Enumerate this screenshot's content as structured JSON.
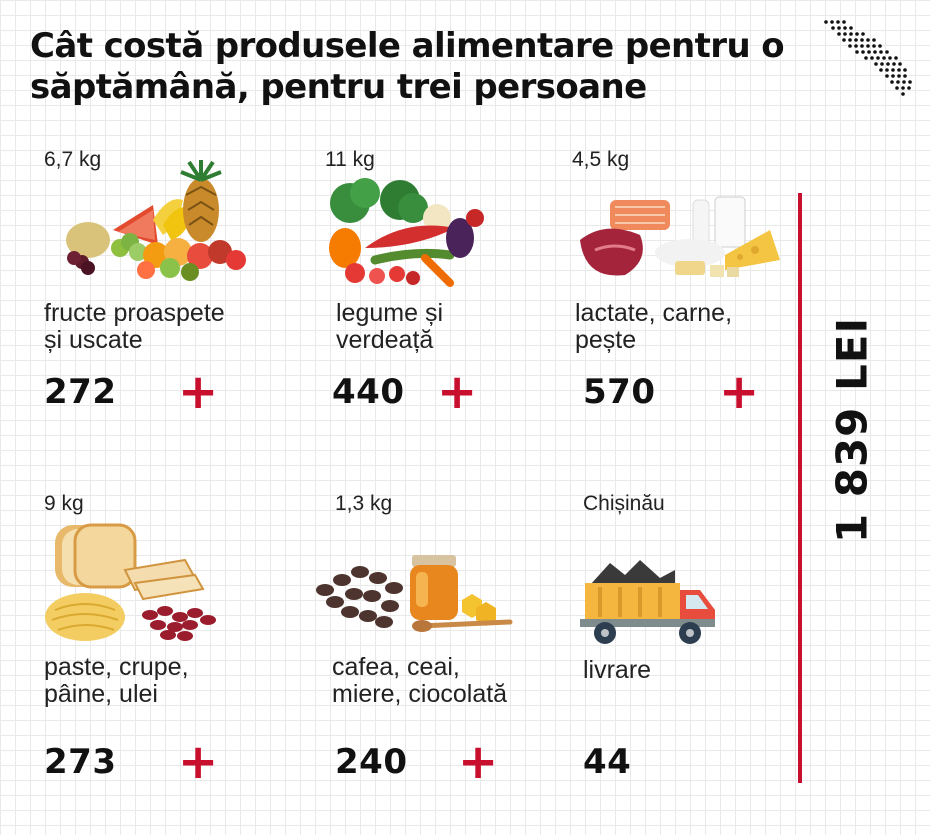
{
  "title": "Cât costă produsele alimentare pentru o săptămână, pentru trei persoane",
  "accent_color": "#c8102e",
  "items": [
    {
      "weight": "6,7 kg",
      "name_line1": "fructe proaspete",
      "name_line2": "și uscate",
      "price": "272",
      "plus": "+"
    },
    {
      "weight": "11 kg",
      "name_line1": "legume și",
      "name_line2": "verdeață",
      "price": "440",
      "plus": "+"
    },
    {
      "weight": "4,5 kg",
      "name_line1": "lactate, carne,",
      "name_line2": "pește",
      "price": "570",
      "plus": "+"
    },
    {
      "weight": "9 kg",
      "name_line1": "paste, crupe,",
      "name_line2": "pâine, ulei",
      "price": "273",
      "plus": "+"
    },
    {
      "weight": "1,3 kg",
      "name_line1": "cafea, ceai,",
      "name_line2": "miere, ciocolată",
      "price": "240",
      "plus": "+"
    },
    {
      "weight": "Chișinău",
      "name_line1": "livrare",
      "name_line2": "",
      "price": "44",
      "plus": ""
    }
  ],
  "total": "1 839 LEI",
  "icons": [
    "moldova-map-icon",
    "fruits-image",
    "vegetables-image",
    "dairy-meat-fish-image",
    "bread-pasta-beans-image",
    "coffee-honey-image",
    "delivery-truck-icon"
  ]
}
